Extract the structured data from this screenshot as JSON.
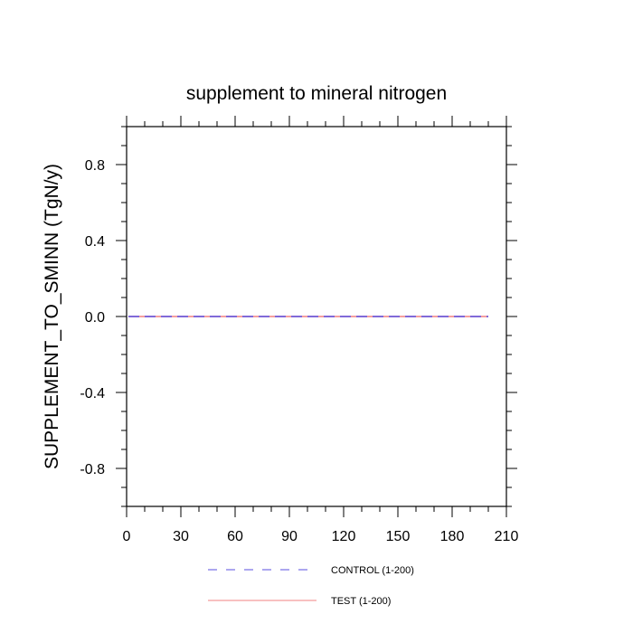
{
  "chart_data": {
    "type": "line",
    "title": "supplement to mineral nitrogen",
    "xlabel": "",
    "ylabel": "SUPPLEMENT_TO_SMINN  (TgN/y)",
    "xlim": [
      0,
      210
    ],
    "ylim": [
      -1.0,
      1.0
    ],
    "x_ticks": [
      0,
      30,
      60,
      90,
      120,
      150,
      180,
      210
    ],
    "x_tick_labels": [
      "0",
      "30",
      "60",
      "90",
      "120",
      "150",
      "180",
      "210"
    ],
    "y_ticks": [
      -0.8,
      -0.4,
      0.0,
      0.4,
      0.8
    ],
    "y_tick_labels": [
      "-0.8",
      "-0.4",
      "0.0",
      "0.4",
      "0.8"
    ],
    "grid": false,
    "legend_position": "bottom",
    "series": [
      {
        "name": "CONTROL (1-200)",
        "color": "#5a4fe0",
        "style": "dashed",
        "x": [
          1,
          200
        ],
        "values": [
          0.0,
          0.0
        ]
      },
      {
        "name": "TEST (1-200)",
        "color": "#f08080",
        "style": "solid",
        "x": [
          1,
          200
        ],
        "values": [
          0.0,
          0.0
        ]
      }
    ]
  }
}
